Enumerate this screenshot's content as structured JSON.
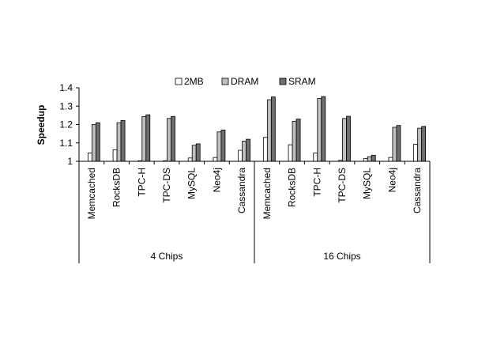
{
  "chart_data": {
    "type": "bar",
    "ylabel": "Speedup",
    "xlabel": "",
    "ylim": [
      1,
      1.4
    ],
    "yticks": [
      "1",
      "1.1",
      "1.2",
      "1.3",
      "1.4"
    ],
    "legend_position": "top-center",
    "groups": [
      {
        "label": "4 Chips",
        "categories": [
          "Memcached",
          "RocksDB",
          "TPC-H",
          "TPC-DS",
          "MySQL",
          "Neo4j",
          "Cassandra"
        ]
      },
      {
        "label": "16 Chips",
        "categories": [
          "Memcached",
          "RocksDB",
          "TPC-H",
          "TPC-DS",
          "MySQL",
          "Neo4j",
          "Cassandra"
        ]
      }
    ],
    "series": [
      {
        "name": "2MB",
        "color": "#ffffff",
        "values": [
          1.045,
          1.063,
          1.003,
          1.003,
          1.018,
          1.021,
          1.06,
          1.13,
          1.09,
          1.045,
          1.005,
          1.015,
          1.021,
          1.093
        ]
      },
      {
        "name": "DRAM",
        "color": "#bfbfbf",
        "values": [
          1.2,
          1.21,
          1.243,
          1.233,
          1.087,
          1.16,
          1.11,
          1.335,
          1.218,
          1.342,
          1.233,
          1.025,
          1.185,
          1.18
        ]
      },
      {
        "name": "SRAM",
        "color": "#6e6e6e",
        "values": [
          1.21,
          1.222,
          1.253,
          1.244,
          1.095,
          1.17,
          1.12,
          1.35,
          1.23,
          1.352,
          1.245,
          1.033,
          1.195,
          1.19
        ]
      }
    ]
  }
}
